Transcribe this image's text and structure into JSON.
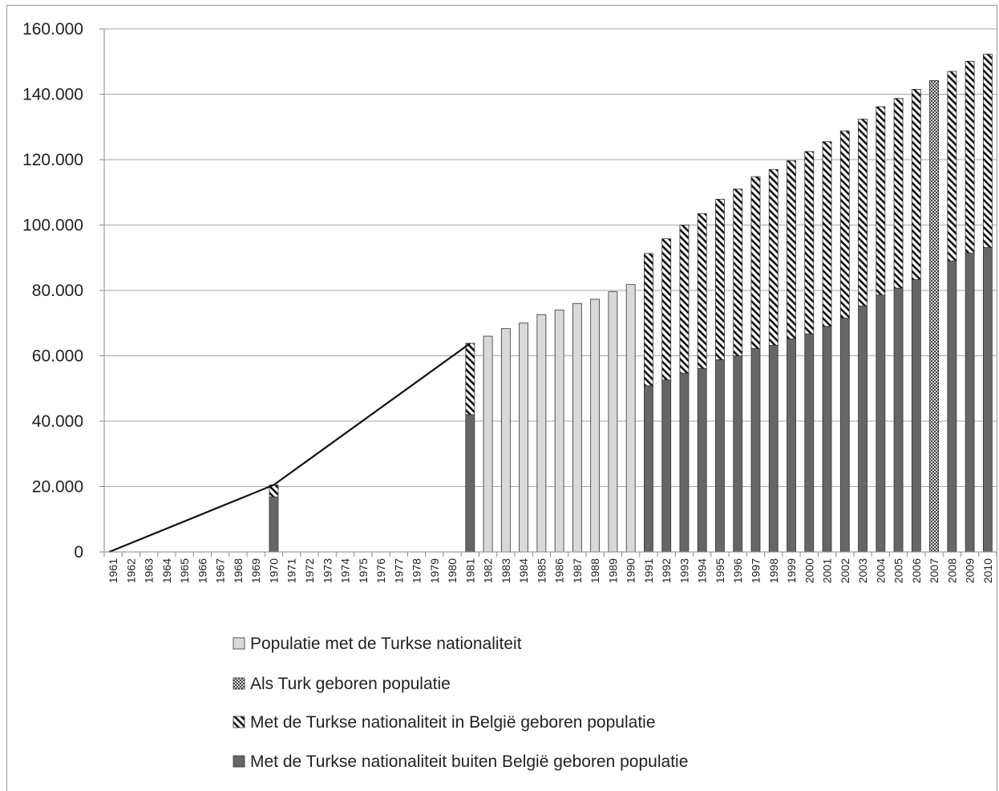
{
  "chart_data": {
    "type": "bar",
    "stacked": true,
    "y_ticks": [
      "0",
      "20.000",
      "40.000",
      "60.000",
      "80.000",
      "100.000",
      "120.000",
      "140.000",
      "160.000"
    ],
    "ylim": [
      0,
      160000
    ],
    "grid": "horizontal",
    "legend_placement": "bottom",
    "categories": [
      "1961",
      "1962",
      "1963",
      "1964",
      "1965",
      "1966",
      "1967",
      "1968",
      "1969",
      "1970",
      "1971",
      "1972",
      "1973",
      "1974",
      "1975",
      "1976",
      "1977",
      "1978",
      "1979",
      "1980",
      "1981",
      "1982",
      "1983",
      "1984",
      "1985",
      "1986",
      "1987",
      "1988",
      "1989",
      "1990",
      "1991",
      "1992",
      "1993",
      "1994",
      "1995",
      "1996",
      "1997",
      "1998",
      "1999",
      "2000",
      "2001",
      "2002",
      "2003",
      "2004",
      "2005",
      "2006",
      "2007",
      "2008",
      "2009",
      "2010"
    ],
    "series": [
      {
        "name": "Populatie met de Turkse nationaliteit",
        "color": "#d9d9d9",
        "pattern": "solid",
        "values": [
          null,
          null,
          null,
          null,
          null,
          null,
          null,
          null,
          null,
          null,
          null,
          null,
          null,
          null,
          null,
          null,
          null,
          null,
          null,
          null,
          null,
          66000,
          68300,
          70000,
          72600,
          74000,
          76000,
          77300,
          79600,
          81800,
          null,
          null,
          null,
          null,
          null,
          null,
          null,
          null,
          null,
          null,
          null,
          null,
          null,
          null,
          null,
          null,
          null,
          null,
          null,
          null
        ]
      },
      {
        "name": "Als Turk geboren populatie",
        "color": "#ffffff",
        "pattern": "crosshatch",
        "values": [
          null,
          null,
          null,
          null,
          null,
          null,
          null,
          null,
          null,
          null,
          null,
          null,
          null,
          null,
          null,
          null,
          null,
          null,
          null,
          null,
          null,
          null,
          null,
          null,
          null,
          null,
          null,
          null,
          null,
          null,
          null,
          null,
          null,
          null,
          null,
          null,
          null,
          null,
          null,
          null,
          null,
          null,
          null,
          null,
          null,
          null,
          144200,
          null,
          null,
          null
        ]
      },
      {
        "name": "Met de Turkse nationaliteit in België geboren populatie",
        "color": "#ffffff",
        "pattern": "diagonal",
        "values": [
          null,
          null,
          null,
          null,
          null,
          null,
          null,
          null,
          null,
          3700,
          null,
          null,
          null,
          null,
          null,
          null,
          null,
          null,
          null,
          null,
          21800,
          null,
          null,
          null,
          null,
          null,
          null,
          null,
          null,
          null,
          40500,
          43200,
          45300,
          47400,
          49100,
          51000,
          52600,
          53800,
          54500,
          55800,
          56500,
          57300,
          57200,
          57600,
          58000,
          58200,
          null,
          58000,
          58700,
          59200
        ]
      },
      {
        "name": "Met de Turkse nationaliteit buiten België geboren populatie",
        "color": "#666666",
        "pattern": "solid",
        "values": [
          null,
          null,
          null,
          null,
          null,
          null,
          null,
          null,
          null,
          16800,
          null,
          null,
          null,
          null,
          null,
          null,
          null,
          null,
          null,
          null,
          42000,
          null,
          null,
          null,
          null,
          null,
          null,
          null,
          null,
          null,
          50800,
          52600,
          54700,
          56100,
          58800,
          60000,
          62200,
          63200,
          65200,
          66700,
          69000,
          71500,
          75200,
          78600,
          80700,
          83300,
          null,
          89000,
          91400,
          93100
        ]
      }
    ],
    "trend_line": {
      "x": [
        "1961",
        "1970",
        "1981"
      ],
      "y": [
        0,
        20500,
        63800
      ]
    }
  }
}
